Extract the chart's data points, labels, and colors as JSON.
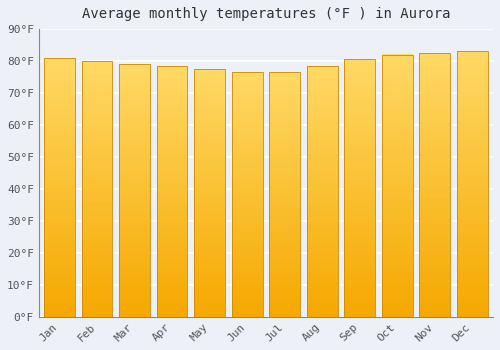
{
  "title": "Average monthly temperatures (°F ) in Aurora",
  "months": [
    "Jan",
    "Feb",
    "Mar",
    "Apr",
    "May",
    "Jun",
    "Jul",
    "Aug",
    "Sep",
    "Oct",
    "Nov",
    "Dec"
  ],
  "values": [
    81,
    80,
    79,
    78.5,
    77.5,
    76.5,
    76.5,
    78.5,
    80.5,
    82,
    82.5,
    83
  ],
  "bar_color_bottom": "#F5A800",
  "bar_color_top": "#FFD966",
  "bar_edge_color": "#CC8800",
  "background_color": "#EEF0F8",
  "grid_color": "#FFFFFF",
  "ylim": [
    0,
    90
  ],
  "ytick_step": 10,
  "title_fontsize": 10,
  "tick_fontsize": 8,
  "bar_width": 0.82
}
